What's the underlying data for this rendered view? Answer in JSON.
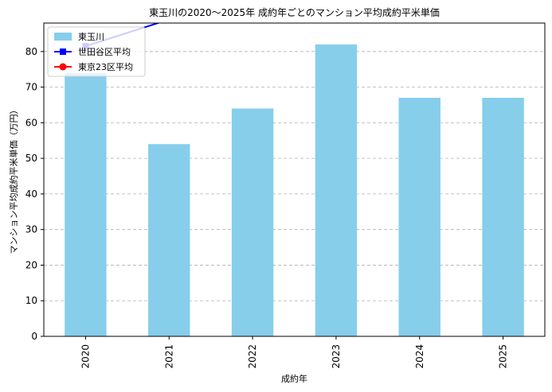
{
  "chart_data": {
    "type": "bar",
    "title": "東玉川の2020〜2025年 成約年ごとのマンション平均成約平米単価",
    "xlabel": "成約年",
    "ylabel": "マンション平均成約平米単価（万円）",
    "categories": [
      "2020",
      "2021",
      "2022",
      "2023",
      "2024",
      "2025"
    ],
    "ylim": [
      0,
      88
    ],
    "yticks": [
      0,
      10,
      20,
      30,
      40,
      50,
      60,
      70,
      80
    ],
    "grid": "y-dashed",
    "legend_position": "top-left",
    "series": [
      {
        "name": "東玉川",
        "type": "bar",
        "color": "#87ceeb",
        "values": [
          74,
          54,
          64,
          82,
          67,
          67
        ]
      },
      {
        "name": "世田谷区平均",
        "type": "line",
        "marker": "square",
        "color": "#0000ff",
        "values": [
          81.5,
          89,
          null,
          null,
          null,
          null
        ]
      },
      {
        "name": "東京23区平均",
        "type": "line",
        "marker": "circle",
        "color": "#ff0000",
        "values": [
          89,
          null,
          null,
          null,
          null,
          null
        ]
      }
    ]
  }
}
